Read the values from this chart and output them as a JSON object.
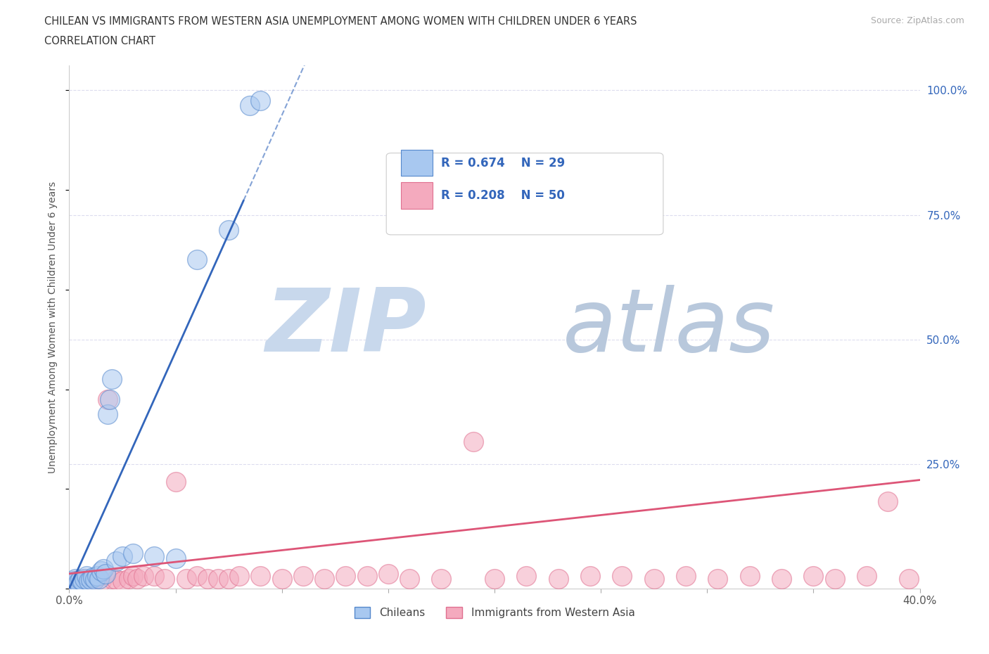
{
  "title_line1": "CHILEAN VS IMMIGRANTS FROM WESTERN ASIA UNEMPLOYMENT AMONG WOMEN WITH CHILDREN UNDER 6 YEARS",
  "title_line2": "CORRELATION CHART",
  "source": "Source: ZipAtlas.com",
  "ylabel": "Unemployment Among Women with Children Under 6 years",
  "xlim": [
    0.0,
    0.4
  ],
  "ylim": [
    0.0,
    1.05
  ],
  "blue_color": "#A8C8F0",
  "pink_color": "#F4AABE",
  "blue_edge_color": "#5588CC",
  "pink_edge_color": "#E07090",
  "blue_line_color": "#3366BB",
  "pink_line_color": "#DD5577",
  "watermark_zip": "ZIP",
  "watermark_atlas": "atlas",
  "watermark_color": "#C8D8EC",
  "legend_R1": "R = 0.674",
  "legend_N1": "N = 29",
  "legend_R2": "R = 0.208",
  "legend_N2": "N = 50",
  "chileans_x": [
    0.001,
    0.002,
    0.003,
    0.004,
    0.005,
    0.006,
    0.007,
    0.008,
    0.009,
    0.01,
    0.011,
    0.012,
    0.013,
    0.014,
    0.015,
    0.016,
    0.017,
    0.018,
    0.019,
    0.02,
    0.022,
    0.025,
    0.03,
    0.04,
    0.05,
    0.06,
    0.075,
    0.085,
    0.09
  ],
  "chileans_y": [
    0.01,
    0.015,
    0.02,
    0.012,
    0.018,
    0.015,
    0.02,
    0.025,
    0.015,
    0.018,
    0.022,
    0.018,
    0.025,
    0.02,
    0.035,
    0.04,
    0.03,
    0.35,
    0.38,
    0.42,
    0.055,
    0.065,
    0.07,
    0.065,
    0.06,
    0.66,
    0.72,
    0.97,
    0.98
  ],
  "immigrants_x": [
    0.001,
    0.003,
    0.005,
    0.007,
    0.009,
    0.01,
    0.012,
    0.015,
    0.018,
    0.02,
    0.022,
    0.025,
    0.028,
    0.03,
    0.032,
    0.035,
    0.04,
    0.045,
    0.05,
    0.055,
    0.06,
    0.065,
    0.07,
    0.075,
    0.08,
    0.09,
    0.1,
    0.11,
    0.12,
    0.13,
    0.14,
    0.15,
    0.16,
    0.175,
    0.19,
    0.2,
    0.215,
    0.23,
    0.245,
    0.26,
    0.275,
    0.29,
    0.305,
    0.32,
    0.335,
    0.35,
    0.36,
    0.375,
    0.385,
    0.395
  ],
  "immigrants_y": [
    0.01,
    0.015,
    0.018,
    0.02,
    0.015,
    0.018,
    0.02,
    0.015,
    0.38,
    0.02,
    0.018,
    0.015,
    0.02,
    0.025,
    0.02,
    0.025,
    0.025,
    0.02,
    0.215,
    0.02,
    0.025,
    0.02,
    0.02,
    0.02,
    0.025,
    0.025,
    0.02,
    0.025,
    0.02,
    0.025,
    0.025,
    0.03,
    0.02,
    0.02,
    0.295,
    0.02,
    0.025,
    0.02,
    0.025,
    0.025,
    0.02,
    0.025,
    0.02,
    0.025,
    0.02,
    0.025,
    0.02,
    0.025,
    0.175,
    0.02
  ],
  "background_color": "#FFFFFF",
  "grid_color": "#DDDDEE",
  "blue_slope": 9.5,
  "blue_intercept": 0.0,
  "pink_slope": 0.47,
  "pink_intercept": 0.03
}
